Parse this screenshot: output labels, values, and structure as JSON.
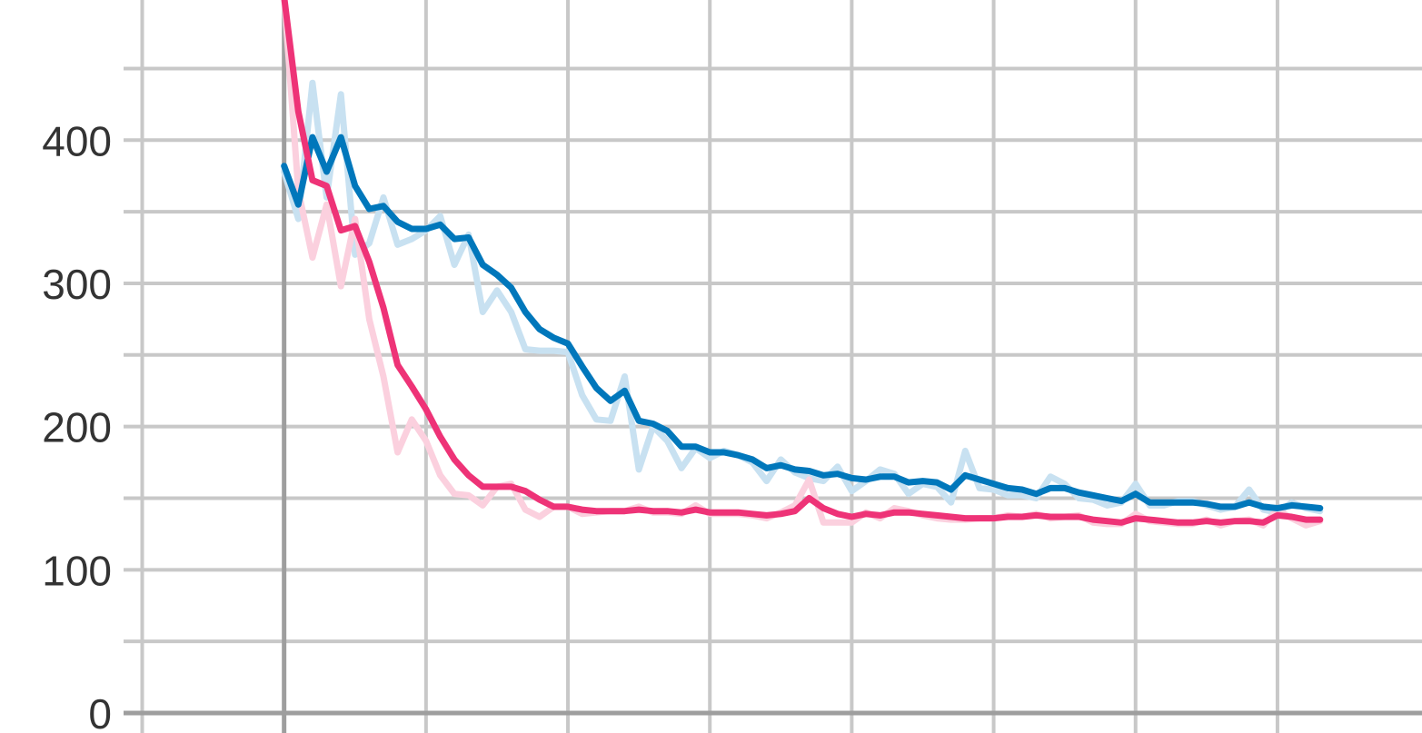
{
  "chart_data": {
    "type": "line",
    "title": "",
    "xlabel": "",
    "ylabel": "",
    "ylim": [
      0,
      500
    ],
    "xlim": [
      -10,
      70
    ],
    "grid": true,
    "y_ticks": [
      0,
      50,
      100,
      150,
      200,
      250,
      300,
      350,
      400,
      450
    ],
    "y_tick_labels": [
      "0",
      "",
      "100",
      "",
      "200",
      "",
      "300",
      "",
      "400",
      ""
    ],
    "x_ticks": [
      -10,
      0,
      10,
      20,
      30,
      40,
      50,
      60,
      70
    ],
    "x": [
      0,
      1,
      2,
      3,
      4,
      5,
      6,
      7,
      8,
      9,
      10,
      11,
      12,
      13,
      14,
      15,
      16,
      17,
      18,
      19,
      20,
      21,
      22,
      23,
      24,
      25,
      26,
      27,
      28,
      29,
      30,
      31,
      32,
      33,
      34,
      35,
      36,
      37,
      38,
      39,
      40,
      41,
      42,
      43,
      44,
      45,
      46,
      47,
      48,
      49,
      50,
      51,
      52,
      53,
      54,
      55,
      56,
      57,
      58,
      59,
      60,
      61,
      62,
      63,
      64,
      65,
      66,
      67,
      68,
      69,
      70,
      71,
      72,
      73
    ],
    "series": [
      {
        "color": "#0077bb",
        "raw_color": "#c8e1f1",
        "smoothed": [
          382,
          355,
          402,
          378,
          402,
          368,
          352,
          354,
          343,
          338,
          338,
          341,
          331,
          332,
          313,
          306,
          297,
          280,
          268,
          262,
          258,
          242,
          227,
          218,
          225,
          204,
          202,
          197,
          186,
          186,
          182,
          182,
          180,
          177,
          171,
          173,
          170,
          169,
          166,
          167,
          164,
          163,
          165,
          165,
          161,
          162,
          161,
          156,
          166,
          163,
          160,
          157,
          156,
          153,
          157,
          157,
          154,
          152,
          150,
          148,
          153,
          147,
          147,
          147,
          147,
          146,
          144,
          144,
          147,
          144,
          143,
          145,
          144,
          143
        ],
        "raw": [
          378,
          345,
          440,
          360,
          432,
          320,
          328,
          360,
          327,
          331,
          337,
          347,
          313,
          334,
          280,
          295,
          280,
          254,
          253,
          253,
          252,
          222,
          205,
          204,
          235,
          170,
          200,
          190,
          171,
          185,
          178,
          183,
          180,
          175,
          162,
          177,
          168,
          164,
          162,
          172,
          155,
          162,
          170,
          167,
          153,
          160,
          158,
          147,
          183,
          157,
          156,
          152,
          152,
          150,
          165,
          160,
          150,
          149,
          145,
          147,
          160,
          145,
          145,
          148,
          148,
          145,
          142,
          144,
          156,
          142,
          140,
          147,
          143,
          141
        ]
      },
      {
        "color": "#ee3377",
        "raw_color": "#fbd0de",
        "smoothed": [
          500,
          420,
          372,
          368,
          337,
          340,
          315,
          283,
          243,
          228,
          212,
          193,
          177,
          166,
          158,
          158,
          158,
          155,
          149,
          144,
          144,
          142,
          141,
          141,
          141,
          142,
          141,
          141,
          140,
          142,
          140,
          140,
          140,
          139,
          138,
          139,
          141,
          150,
          143,
          139,
          137,
          139,
          138,
          140,
          140,
          139,
          138,
          137,
          136,
          136,
          136,
          137,
          137,
          138,
          137,
          137,
          137,
          135,
          134,
          133,
          136,
          135,
          134,
          133,
          133,
          134,
          133,
          134,
          134,
          133,
          138,
          137,
          135,
          135
        ],
        "raw": [
          500,
          365,
          318,
          355,
          298,
          345,
          275,
          235,
          182,
          205,
          190,
          166,
          153,
          152,
          145,
          158,
          160,
          142,
          137,
          144,
          144,
          139,
          140,
          141,
          141,
          144,
          140,
          140,
          139,
          145,
          139,
          139,
          139,
          138,
          136,
          140,
          145,
          163,
          133,
          133,
          133,
          140,
          136,
          143,
          141,
          138,
          136,
          135,
          135,
          136,
          136,
          138,
          137,
          139,
          136,
          137,
          138,
          133,
          132,
          132,
          139,
          134,
          133,
          132,
          132,
          135,
          131,
          134,
          135,
          131,
          142,
          136,
          131,
          134
        ]
      }
    ]
  }
}
